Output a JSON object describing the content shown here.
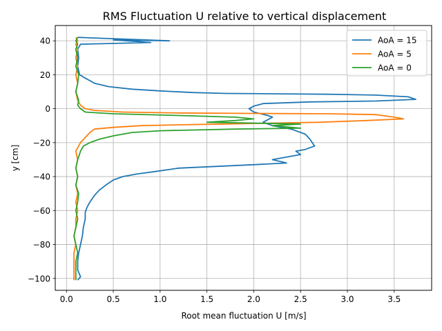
{
  "chart_data": {
    "type": "line",
    "title": "RMS Fluctuation U relative to vertical displacement",
    "xlabel": "Root mean fluctuation U [m/s]",
    "ylabel": "y [cm]",
    "xlim": [
      -0.12,
      3.9
    ],
    "ylim": [
      -107,
      49
    ],
    "xticks": [
      0.0,
      0.5,
      1.0,
      1.5,
      2.0,
      2.5,
      3.0,
      3.5
    ],
    "xtick_labels": [
      "0.0",
      "0.5",
      "1.0",
      "1.5",
      "2.0",
      "2.5",
      "3.0",
      "3.5"
    ],
    "yticks": [
      -100,
      -80,
      -60,
      -40,
      -20,
      0,
      20,
      40
    ],
    "ytick_labels": [
      "−100",
      "−80",
      "−60",
      "−40",
      "−20",
      "0",
      "20",
      "40"
    ],
    "grid": true,
    "legend_position": "top-right",
    "series": [
      {
        "name": "AoA = 15",
        "color": "#1f77b4",
        "points": [
          [
            0.12,
            42
          ],
          [
            1.1,
            40
          ],
          [
            0.5,
            40.5
          ],
          [
            0.9,
            39
          ],
          [
            0.15,
            38
          ],
          [
            0.12,
            35
          ],
          [
            0.13,
            30
          ],
          [
            0.12,
            25
          ],
          [
            0.14,
            20
          ],
          [
            0.2,
            18
          ],
          [
            0.3,
            15
          ],
          [
            0.45,
            13
          ],
          [
            0.7,
            11.5
          ],
          [
            1.0,
            10.5
          ],
          [
            1.35,
            9.5
          ],
          [
            1.7,
            9
          ],
          [
            2.2,
            8.8
          ],
          [
            2.8,
            8.5
          ],
          [
            3.3,
            8
          ],
          [
            3.65,
            7
          ],
          [
            3.73,
            5.5
          ],
          [
            3.3,
            4.5
          ],
          [
            2.6,
            4
          ],
          [
            2.1,
            3
          ],
          [
            2.0,
            1.5
          ],
          [
            1.95,
            0
          ],
          [
            2.0,
            -2
          ],
          [
            2.15,
            -4
          ],
          [
            2.2,
            -5
          ],
          [
            2.1,
            -8
          ],
          [
            2.2,
            -10
          ],
          [
            2.4,
            -12
          ],
          [
            2.55,
            -15
          ],
          [
            2.6,
            -18
          ],
          [
            2.65,
            -22
          ],
          [
            2.55,
            -24
          ],
          [
            2.45,
            -25
          ],
          [
            2.5,
            -27
          ],
          [
            2.3,
            -29
          ],
          [
            2.2,
            -30
          ],
          [
            2.35,
            -32
          ],
          [
            2.0,
            -33
          ],
          [
            1.6,
            -34
          ],
          [
            1.2,
            -35
          ],
          [
            0.95,
            -37
          ],
          [
            0.75,
            -38.5
          ],
          [
            0.6,
            -40
          ],
          [
            0.5,
            -42
          ],
          [
            0.42,
            -45
          ],
          [
            0.35,
            -48
          ],
          [
            0.3,
            -51
          ],
          [
            0.25,
            -55
          ],
          [
            0.22,
            -58
          ],
          [
            0.2,
            -61
          ],
          [
            0.2,
            -65
          ],
          [
            0.18,
            -70
          ],
          [
            0.17,
            -75
          ],
          [
            0.15,
            -80
          ],
          [
            0.13,
            -85
          ],
          [
            0.12,
            -90
          ],
          [
            0.12,
            -95
          ],
          [
            0.15,
            -99
          ],
          [
            0.12,
            -101
          ]
        ]
      },
      {
        "name": "AoA = 5",
        "color": "#ff7f0e",
        "points": [
          [
            0.1,
            42
          ],
          [
            0.12,
            40
          ],
          [
            0.1,
            38
          ],
          [
            0.12,
            35
          ],
          [
            0.1,
            30
          ],
          [
            0.12,
            25
          ],
          [
            0.1,
            20
          ],
          [
            0.12,
            15
          ],
          [
            0.1,
            10
          ],
          [
            0.12,
            5
          ],
          [
            0.15,
            2
          ],
          [
            0.2,
            0
          ],
          [
            0.3,
            -1
          ],
          [
            0.6,
            -2
          ],
          [
            1.2,
            -2.5
          ],
          [
            2.0,
            -2.8
          ],
          [
            2.8,
            -3
          ],
          [
            3.3,
            -3.5
          ],
          [
            3.5,
            -5
          ],
          [
            3.6,
            -6
          ],
          [
            3.2,
            -7
          ],
          [
            2.7,
            -8
          ],
          [
            2.2,
            -8.5
          ],
          [
            1.7,
            -9
          ],
          [
            1.2,
            -9.5
          ],
          [
            0.8,
            -10
          ],
          [
            0.5,
            -11
          ],
          [
            0.3,
            -12
          ],
          [
            0.25,
            -14
          ],
          [
            0.2,
            -17
          ],
          [
            0.15,
            -20
          ],
          [
            0.12,
            -23
          ],
          [
            0.1,
            -25
          ],
          [
            0.12,
            -30
          ],
          [
            0.1,
            -35
          ],
          [
            0.12,
            -40
          ],
          [
            0.1,
            -45
          ],
          [
            0.12,
            -50
          ],
          [
            0.1,
            -55
          ],
          [
            0.12,
            -60
          ],
          [
            0.1,
            -65
          ],
          [
            0.1,
            -70
          ],
          [
            0.08,
            -75
          ],
          [
            0.1,
            -80
          ],
          [
            0.08,
            -85
          ],
          [
            0.08,
            -90
          ],
          [
            0.08,
            -95
          ],
          [
            0.08,
            -101
          ]
        ]
      },
      {
        "name": "AoA = 0",
        "color": "#2ca02c",
        "points": [
          [
            0.12,
            42
          ],
          [
            0.1,
            40
          ],
          [
            0.12,
            38
          ],
          [
            0.1,
            35
          ],
          [
            0.12,
            30
          ],
          [
            0.1,
            25
          ],
          [
            0.13,
            20
          ],
          [
            0.12,
            15
          ],
          [
            0.1,
            10
          ],
          [
            0.13,
            5
          ],
          [
            0.12,
            2
          ],
          [
            0.15,
            0
          ],
          [
            0.2,
            -2
          ],
          [
            0.5,
            -3
          ],
          [
            1.2,
            -4
          ],
          [
            1.8,
            -5
          ],
          [
            2.0,
            -6
          ],
          [
            1.8,
            -7
          ],
          [
            1.5,
            -8
          ],
          [
            2.5,
            -9
          ],
          [
            2.2,
            -10
          ],
          [
            2.4,
            -11
          ],
          [
            2.5,
            -11.5
          ],
          [
            1.8,
            -12
          ],
          [
            1.0,
            -13
          ],
          [
            0.7,
            -14
          ],
          [
            0.5,
            -16
          ],
          [
            0.35,
            -18
          ],
          [
            0.25,
            -20
          ],
          [
            0.18,
            -22
          ],
          [
            0.15,
            -25
          ],
          [
            0.12,
            -30
          ],
          [
            0.1,
            -35
          ],
          [
            0.12,
            -40
          ],
          [
            0.1,
            -45
          ],
          [
            0.13,
            -50
          ],
          [
            0.12,
            -55
          ],
          [
            0.1,
            -60
          ],
          [
            0.12,
            -65
          ],
          [
            0.1,
            -70
          ],
          [
            0.08,
            -75
          ],
          [
            0.1,
            -80
          ],
          [
            0.12,
            -85
          ],
          [
            0.1,
            -90
          ],
          [
            0.1,
            -95
          ],
          [
            0.1,
            -101
          ]
        ]
      }
    ]
  }
}
